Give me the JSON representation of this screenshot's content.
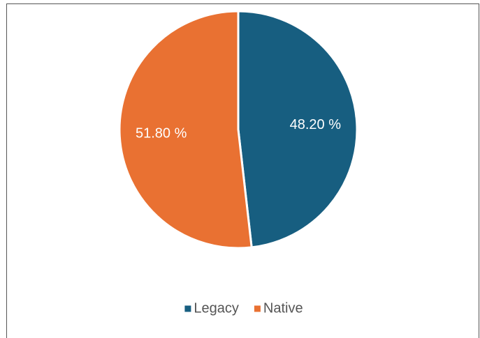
{
  "chart_data": {
    "type": "pie",
    "categories": [
      "Legacy",
      "Native"
    ],
    "values": [
      48.2,
      51.8
    ],
    "value_labels": [
      "48.20 %",
      "51.80 %"
    ],
    "colors": [
      "#175e80",
      "#e97132"
    ],
    "legend": "bottom"
  }
}
